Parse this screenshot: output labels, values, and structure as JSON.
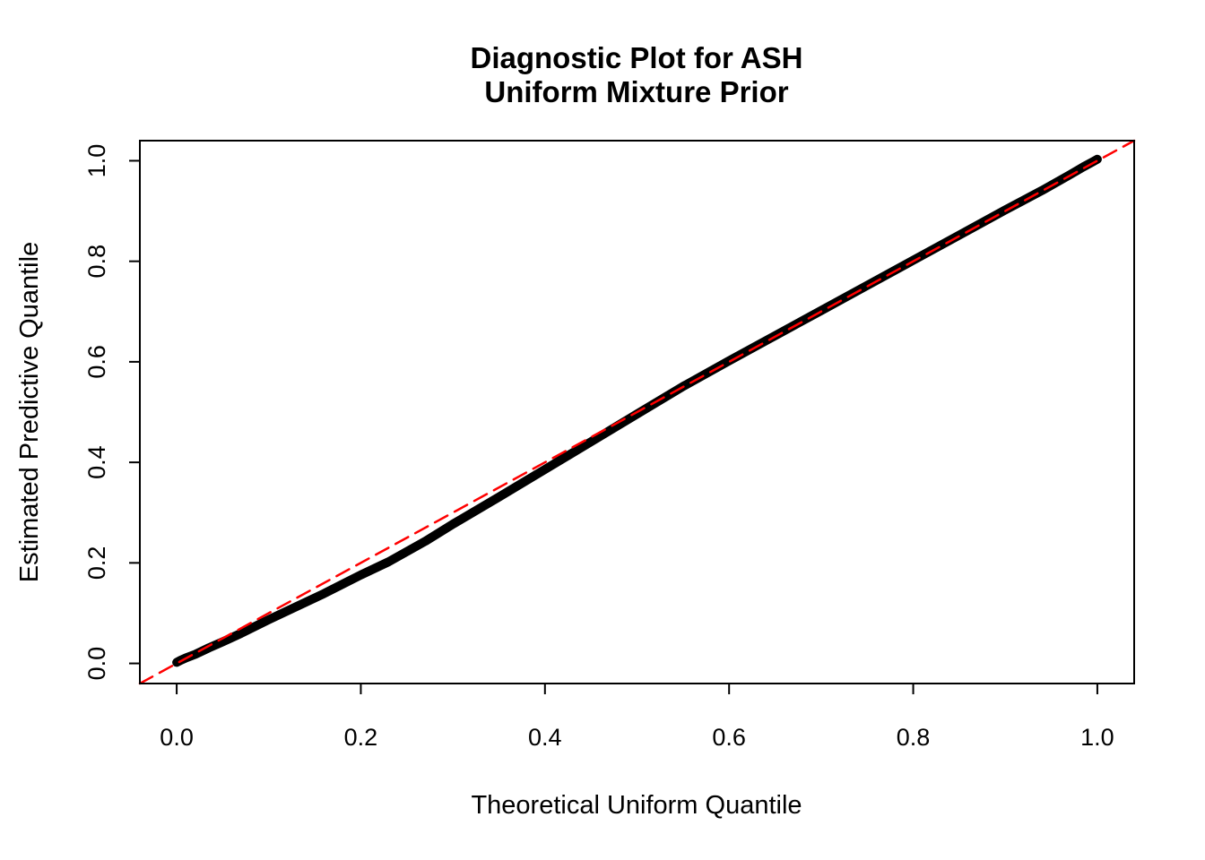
{
  "chart_data": {
    "type": "line",
    "subtype": "qq-diagnostic-plot",
    "title_lines": [
      "Diagnostic Plot for ASH",
      "Uniform Mixture Prior"
    ],
    "title": "Diagnostic Plot for ASH Uniform Mixture Prior",
    "xlabel": "Theoretical Uniform Quantile",
    "ylabel": "Estimated Predictive Quantile",
    "xlim": [
      -0.04,
      1.04
    ],
    "ylim": [
      -0.04,
      1.04
    ],
    "grid": false,
    "legend": false,
    "x_tick_values": [
      0.0,
      0.2,
      0.4,
      0.6,
      0.8,
      1.0
    ],
    "x_tick_labels": [
      "0.0",
      "0.2",
      "0.4",
      "0.6",
      "0.8",
      "1.0"
    ],
    "y_tick_values": [
      0.0,
      0.2,
      0.4,
      0.6,
      0.8,
      1.0
    ],
    "y_tick_labels": [
      "0.0",
      "0.2",
      "0.4",
      "0.6",
      "0.8",
      "1.0"
    ],
    "series": [
      {
        "name": "estimated-predictive-quantiles",
        "description": "Empirical quantile curve (dense black points)",
        "color": "#000000",
        "width": 10,
        "dash": null,
        "points": [
          [
            0.0,
            0.002
          ],
          [
            0.004,
            0.006
          ],
          [
            0.01,
            0.011
          ],
          [
            0.02,
            0.018
          ],
          [
            0.035,
            0.031
          ],
          [
            0.05,
            0.043
          ],
          [
            0.07,
            0.06
          ],
          [
            0.1,
            0.087
          ],
          [
            0.13,
            0.113
          ],
          [
            0.16,
            0.139
          ],
          [
            0.2,
            0.176
          ],
          [
            0.23,
            0.202
          ],
          [
            0.27,
            0.243
          ],
          [
            0.3,
            0.277
          ],
          [
            0.35,
            0.331
          ],
          [
            0.4,
            0.386
          ],
          [
            0.45,
            0.441
          ],
          [
            0.5,
            0.496
          ],
          [
            0.55,
            0.551
          ],
          [
            0.6,
            0.602
          ],
          [
            0.65,
            0.652
          ],
          [
            0.7,
            0.702
          ],
          [
            0.75,
            0.752
          ],
          [
            0.8,
            0.802
          ],
          [
            0.85,
            0.852
          ],
          [
            0.9,
            0.902
          ],
          [
            0.94,
            0.941
          ],
          [
            0.97,
            0.972
          ],
          [
            0.985,
            0.988
          ],
          [
            0.995,
            0.998
          ],
          [
            1.0,
            1.003
          ]
        ]
      },
      {
        "name": "identity-reference-line",
        "description": "y = x reference line (red dashed)",
        "color": "#FF0000",
        "width": 2.5,
        "dash": [
          16,
          9
        ],
        "points": [
          [
            -0.04,
            -0.04
          ],
          [
            1.04,
            1.04
          ]
        ]
      }
    ]
  }
}
